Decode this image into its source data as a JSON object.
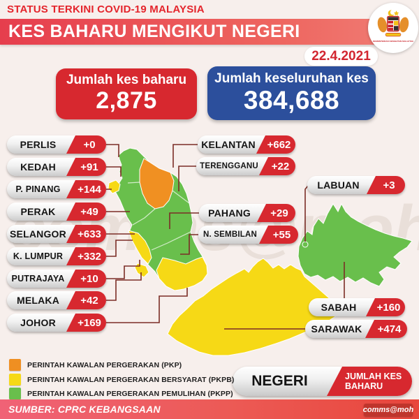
{
  "header": {
    "supertitle": "STATUS TERKINI COVID-19 MALAYSIA",
    "title": "KES BAHARU MENGIKUT NEGERI",
    "date": "22.4.2021",
    "logo_text": "KEMENTERIAN KESIHATAN MALAYSIA"
  },
  "summary": {
    "new_cases": {
      "label": "Jumlah kes baharu",
      "value": "2,875",
      "color": "#d7282f"
    },
    "total_cases": {
      "label": "Jumlah keseluruhan kes",
      "value": "384,688",
      "color": "#2c4f9c"
    }
  },
  "states": [
    {
      "name": "PERLIS",
      "value": "+0"
    },
    {
      "name": "KEDAH",
      "value": "+91"
    },
    {
      "name": "P. PINANG",
      "value": "+144"
    },
    {
      "name": "PERAK",
      "value": "+49"
    },
    {
      "name": "SELANGOR",
      "value": "+633"
    },
    {
      "name": "K. LUMPUR",
      "value": "+332"
    },
    {
      "name": "PUTRAJAYA",
      "value": "+10"
    },
    {
      "name": "MELAKA",
      "value": "+42"
    },
    {
      "name": "JOHOR",
      "value": "+169"
    },
    {
      "name": "KELANTAN",
      "value": "+662"
    },
    {
      "name": "TERENGGANU",
      "value": "+22"
    },
    {
      "name": "PAHANG",
      "value": "+29"
    },
    {
      "name": "N. SEMBILAN",
      "value": "+55"
    },
    {
      "name": "LABUAN",
      "value": "+3"
    },
    {
      "name": "SABAH",
      "value": "+160"
    },
    {
      "name": "SARAWAK",
      "value": "+474"
    }
  ],
  "sample_pill": {
    "state_label": "NEGERI",
    "value_label": "JUMLAH KES BAHARU"
  },
  "legend": {
    "items": [
      {
        "label": "PERINTAH KAWALAN PERGERAKAN (PKP)",
        "color": "#ef8f22"
      },
      {
        "label": "PERINTAH KAWALAN PERGERAKAN BERSYARAT (PKPB)",
        "color": "#f6d916"
      },
      {
        "label": "PERINTAH KAWALAN PERGERAKAN PEMULIHAN (PKPP)",
        "color": "#69bf4c"
      }
    ]
  },
  "footer": {
    "source": "SUMBER: CPRC KEBANGSAAN",
    "credit": "comms@moh"
  },
  "watermark": "comms@moh",
  "map_colors": {
    "green_pkpp": "#69bf4c",
    "yellow_pkpb": "#f6d916",
    "orange_pkp": "#f09022",
    "connector": "#7b2d26"
  },
  "chart_data": {
    "type": "table",
    "title": "KES BAHARU MENGIKUT NEGERI",
    "subtitle": "STATUS TERKINI COVID-19 MALAYSIA",
    "date": "22.4.2021",
    "total_new_cases": 2875,
    "total_cumulative_cases": 384688,
    "columns": [
      "NEGERI",
      "JUMLAH KES BAHARU"
    ],
    "rows": [
      [
        "PERLIS",
        0
      ],
      [
        "KEDAH",
        91
      ],
      [
        "P. PINANG",
        144
      ],
      [
        "PERAK",
        49
      ],
      [
        "SELANGOR",
        633
      ],
      [
        "K. LUMPUR",
        332
      ],
      [
        "PUTRAJAYA",
        10
      ],
      [
        "MELAKA",
        42
      ],
      [
        "JOHOR",
        169
      ],
      [
        "KELANTAN",
        662
      ],
      [
        "TERENGGANU",
        22
      ],
      [
        "PAHANG",
        29
      ],
      [
        "N. SEMBILAN",
        55
      ],
      [
        "LABUAN",
        3
      ],
      [
        "SABAH",
        160
      ],
      [
        "SARAWAK",
        474
      ]
    ],
    "map_color_coding": {
      "PKP_orange": [
        "KELANTAN"
      ],
      "PKPB_yellow": [
        "P. PINANG",
        "SELANGOR",
        "K. LUMPUR",
        "MELAKA",
        "JOHOR",
        "SARAWAK"
      ],
      "PKPP_green": [
        "PERLIS",
        "KEDAH",
        "PERAK",
        "TERENGGANU",
        "PAHANG",
        "N. SEMBILAN",
        "PUTRAJAYA",
        "SABAH",
        "LABUAN"
      ]
    },
    "source": "SUMBER: CPRC KEBANGSAAN"
  }
}
